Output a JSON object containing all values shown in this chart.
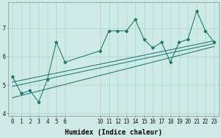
{
  "xlabel": "Humidex (Indice chaleur)",
  "bg_color": "#ceeae6",
  "grid_color": "#aad4ce",
  "line_color": "#1a7a6e",
  "x_data": [
    0,
    1,
    2,
    3,
    4,
    5,
    6,
    10,
    11,
    12,
    13,
    14,
    15,
    16,
    17,
    18,
    19,
    20,
    21,
    22,
    23
  ],
  "y_data": [
    5.3,
    4.7,
    4.8,
    4.4,
    5.2,
    6.5,
    5.8,
    6.2,
    6.9,
    6.9,
    6.9,
    7.3,
    6.6,
    6.3,
    6.5,
    5.8,
    6.5,
    6.6,
    7.6,
    6.9,
    6.5
  ],
  "reg_line1": [
    4.55,
    6.35
  ],
  "reg_line2": [
    4.95,
    6.45
  ],
  "reg_line3": [
    5.1,
    6.55
  ],
  "ylim": [
    3.9,
    7.9
  ],
  "xlim": [
    -0.5,
    23.5
  ],
  "yticks": [
    4,
    5,
    6,
    7
  ],
  "xticks": [
    0,
    1,
    2,
    3,
    4,
    5,
    6,
    10,
    11,
    12,
    13,
    14,
    15,
    16,
    17,
    18,
    19,
    20,
    21,
    22,
    23
  ],
  "tick_fontsize": 5.5,
  "label_fontsize": 7.0
}
